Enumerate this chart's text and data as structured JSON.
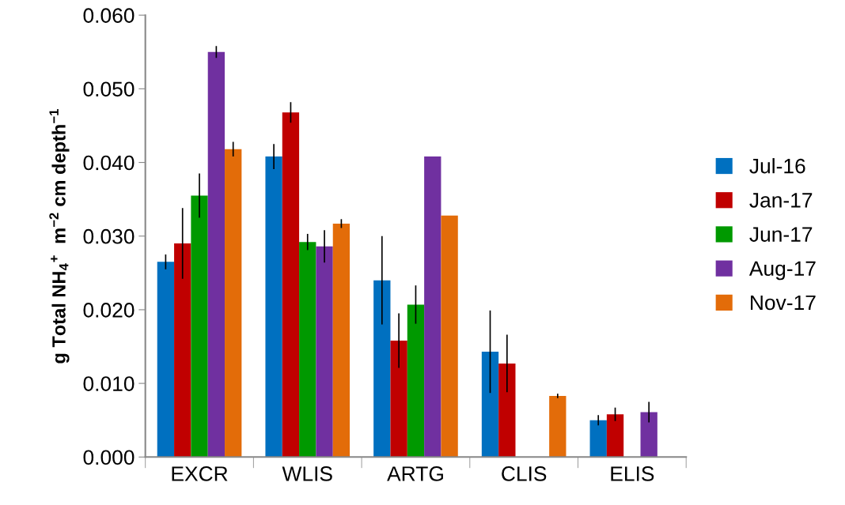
{
  "chart_data": {
    "type": "bar",
    "ylabel": "g Total NH$_{4}$$^{+}$  m$^{−2}$ cm depth$^{−1}$",
    "categories": [
      "EXCR",
      "WLIS",
      "ARTG",
      "CLIS",
      "ELIS"
    ],
    "series": [
      {
        "name": "Jul-16",
        "color": "#0070c0",
        "values": [
          0.0265,
          0.0408,
          0.024,
          0.0143,
          0.005
        ],
        "errors": [
          0.001,
          0.0017,
          0.006,
          0.0056,
          0.0007
        ]
      },
      {
        "name": "Jan-17",
        "color": "#c00000",
        "values": [
          0.029,
          0.0468,
          0.0158,
          0.0127,
          0.0058
        ],
        "errors": [
          0.0048,
          0.0014,
          0.0037,
          0.0039,
          0.0009
        ]
      },
      {
        "name": "Jun-17",
        "color": "#009900",
        "values": [
          0.0355,
          0.0292,
          0.0207,
          null,
          null
        ],
        "errors": [
          0.003,
          0.0011,
          0.0026,
          null,
          null
        ]
      },
      {
        "name": "Aug-17",
        "color": "#7030a0",
        "values": [
          0.055,
          0.0286,
          0.0408,
          null,
          0.0061
        ],
        "errors": [
          0.0008,
          0.0022,
          null,
          null,
          0.0014
        ]
      },
      {
        "name": "Nov-17",
        "color": "#e36c09",
        "values": [
          0.0418,
          0.0317,
          0.0328,
          0.0083,
          null
        ],
        "errors": [
          0.001,
          0.0006,
          null,
          0.0003,
          null
        ]
      }
    ],
    "ylim": [
      0,
      0.06
    ],
    "yticks": [
      {
        "value": 0,
        "label": "0.000"
      },
      {
        "value": 0.01,
        "label": "0.010"
      },
      {
        "value": 0.02,
        "label": "0.020"
      },
      {
        "value": 0.03,
        "label": "0.030"
      },
      {
        "value": 0.04,
        "label": "0.040"
      },
      {
        "value": 0.05,
        "label": "0.050"
      },
      {
        "value": 0.06,
        "label": "0.060"
      }
    ],
    "grid": false,
    "legend": "right"
  }
}
